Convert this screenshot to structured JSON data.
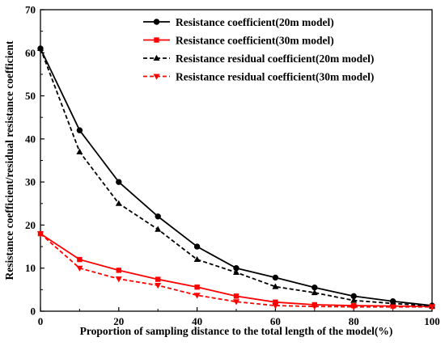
{
  "chart_data": {
    "type": "line",
    "xlabel": "Proportion of sampling distance to the total length of the model(%)",
    "ylabel": "Resistance coefficient/residual resistance coefficient",
    "xlim": [
      0,
      100
    ],
    "ylim": [
      0,
      70
    ],
    "xticks": [
      0,
      20,
      40,
      60,
      80,
      100
    ],
    "yticks": [
      0,
      10,
      20,
      30,
      40,
      50,
      60,
      70
    ],
    "grid": false,
    "legend_position": "top-right",
    "x": [
      0,
      10,
      20,
      30,
      40,
      50,
      60,
      70,
      80,
      90,
      100
    ],
    "series": [
      {
        "name": "Resistance coefficient(20m model)",
        "color": "#000000",
        "line_style": "solid",
        "marker": "circle",
        "values": [
          61,
          42,
          30,
          22,
          15,
          10,
          7.8,
          5.5,
          3.5,
          2.3,
          1.3
        ]
      },
      {
        "name": "Resistance coefficient(30m model)",
        "color": "#ff0000",
        "line_style": "solid",
        "marker": "square",
        "values": [
          18,
          12,
          9.5,
          7.4,
          5.6,
          3.5,
          2.1,
          1.5,
          1.3,
          1.2,
          1.1
        ]
      },
      {
        "name": "Resistance residual coefficient(20m model)",
        "color": "#000000",
        "line_style": "dashed",
        "marker": "triangle-up",
        "values": [
          61,
          37,
          25,
          19,
          12,
          9,
          5.7,
          4.3,
          2.5,
          1.8,
          1.2
        ]
      },
      {
        "name": "Resistance residual coefficient(30m model)",
        "color": "#ff0000",
        "line_style": "dashed",
        "marker": "triangle-down",
        "values": [
          18,
          10,
          7.5,
          6,
          3.7,
          2.2,
          1.3,
          1.1,
          1.0,
          1.0,
          1.0
        ]
      }
    ]
  }
}
